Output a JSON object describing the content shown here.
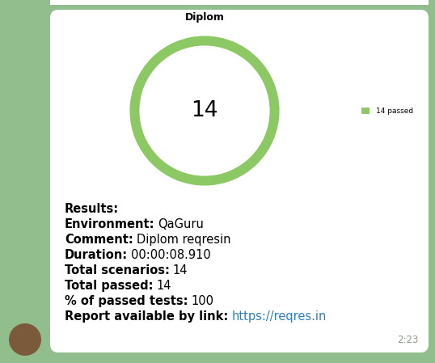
{
  "chart_data": {
    "type": "pie",
    "title": "Diplom",
    "categories": [
      "14 passed"
    ],
    "values": [
      14
    ],
    "colors": [
      "#8cc863"
    ],
    "total": 14,
    "legend": "right"
  },
  "message": {
    "heading": "Results:",
    "fields": [
      {
        "label": "Environment:",
        "value": "QaGuru"
      },
      {
        "label": "Comment:",
        "value": "Diplom reqresin"
      },
      {
        "label": "Duration:",
        "value": "00:00:08.910"
      },
      {
        "label": "Total scenarios:",
        "value": "14"
      },
      {
        "label": "Total passed:",
        "value": "14"
      },
      {
        "label": "% of passed tests:",
        "value": "100"
      },
      {
        "label": "Report available by link:",
        "value": "https://reqres.in"
      }
    ],
    "time": "2:23"
  }
}
